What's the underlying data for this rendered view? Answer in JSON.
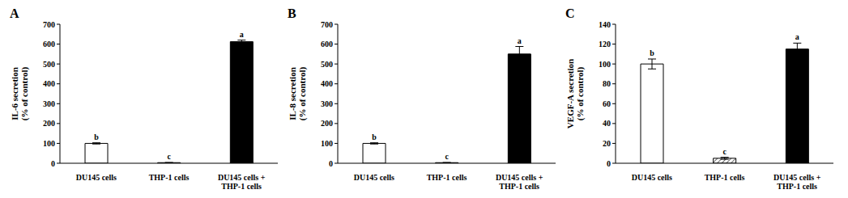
{
  "chart_data": [
    {
      "type": "bar",
      "title": "A",
      "y_label": "IL-6 secretion (% of control)",
      "categories": [
        "DU145 cells",
        "THP-1 cells",
        "DU145 cells + THP-1 cells"
      ],
      "values": [
        100,
        3,
        612
      ],
      "errors": [
        3,
        1,
        8
      ],
      "annotations": [
        "b",
        "c",
        "a"
      ],
      "colors": [
        "#ffffff",
        "#ffffff",
        "#000000"
      ],
      "ylim": [
        0,
        700
      ],
      "yticks": [
        0,
        100,
        200,
        300,
        400,
        500,
        600,
        700
      ],
      "grid": false
    },
    {
      "type": "bar",
      "title": "B",
      "y_label": "IL-8 secretion (% of control)",
      "categories": [
        "DU145 cells",
        "THP-1 cells",
        "DU145 cells + THP-1 cells"
      ],
      "values": [
        100,
        3,
        550
      ],
      "errors": [
        3,
        1,
        38
      ],
      "annotations": [
        "b",
        "c",
        "a"
      ],
      "colors": [
        "#ffffff",
        "#ffffff",
        "#000000"
      ],
      "ylim": [
        0,
        700
      ],
      "yticks": [
        0,
        100,
        200,
        300,
        400,
        500,
        600,
        700
      ],
      "grid": false
    },
    {
      "type": "bar",
      "title": "C",
      "y_label": "VEGF-A secretion (% of control)",
      "categories": [
        "DU145 cells",
        "THP-1 cells",
        "DU145 cells + THP-1 cells"
      ],
      "values": [
        100,
        5,
        115
      ],
      "errors": [
        5,
        1,
        6
      ],
      "annotations": [
        "b",
        "c",
        "a"
      ],
      "colors": [
        "#ffffff",
        "#ffffff",
        "#000000"
      ],
      "ylim": [
        0,
        140
      ],
      "yticks": [
        0,
        20,
        40,
        60,
        80,
        100,
        120,
        140
      ],
      "grid": false
    }
  ]
}
